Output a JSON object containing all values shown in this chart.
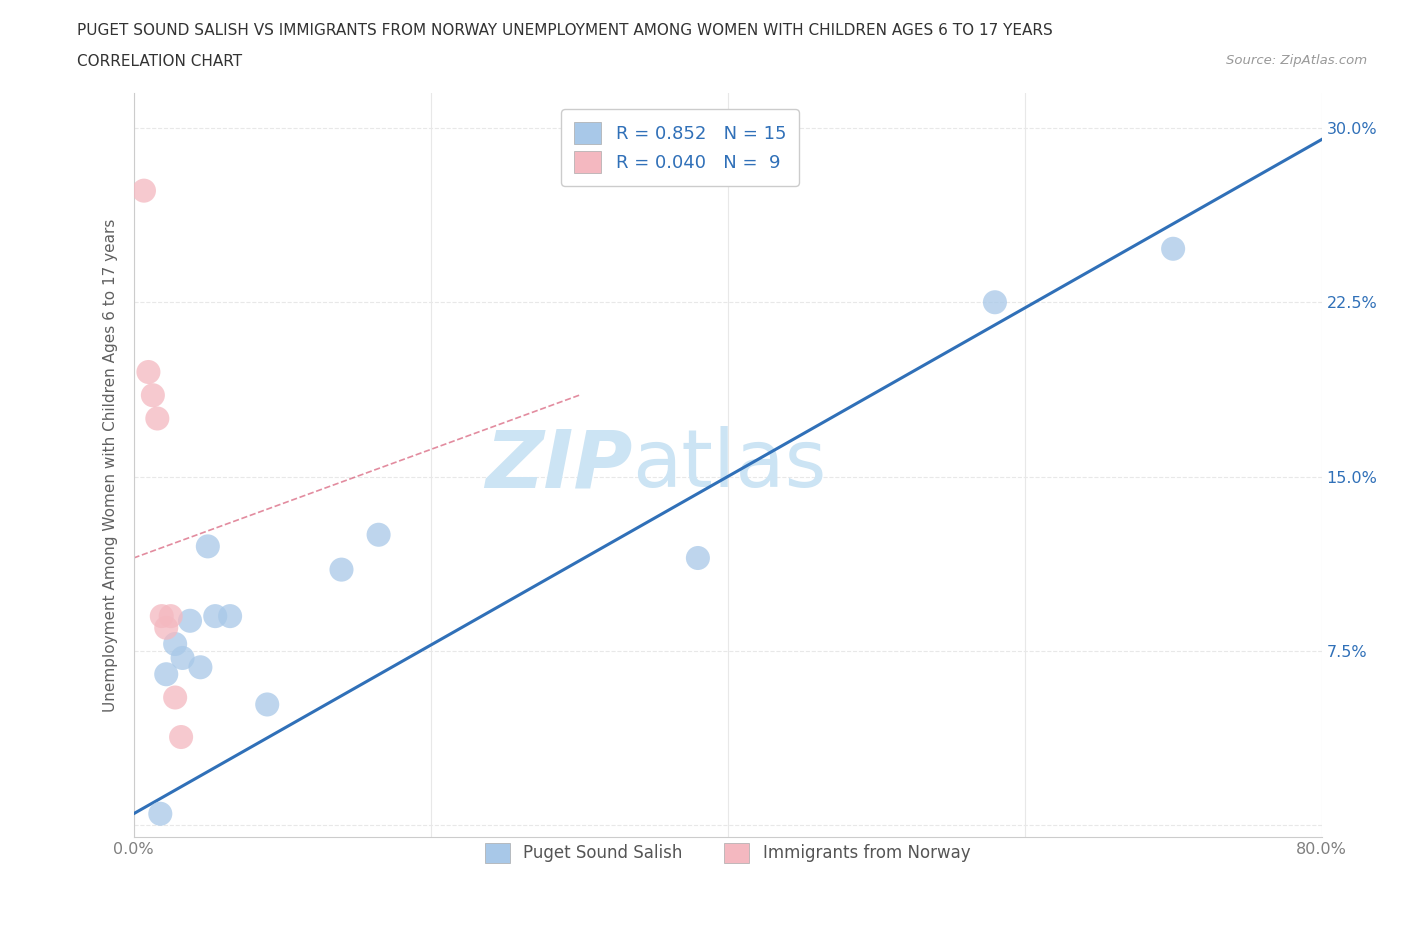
{
  "title_line1": "PUGET SOUND SALISH VS IMMIGRANTS FROM NORWAY UNEMPLOYMENT AMONG WOMEN WITH CHILDREN AGES 6 TO 17 YEARS",
  "title_line2": "CORRELATION CHART",
  "source_text": "Source: ZipAtlas.com",
  "ylabel": "Unemployment Among Women with Children Ages 6 to 17 years",
  "xlim": [
    0.0,
    0.8
  ],
  "ylim": [
    -0.005,
    0.315
  ],
  "xticks": [
    0.0,
    0.2,
    0.4,
    0.6,
    0.8
  ],
  "yticks": [
    0.0,
    0.075,
    0.15,
    0.225,
    0.3
  ],
  "xticklabels": [
    "0.0%",
    "",
    "",
    "",
    "80.0%"
  ],
  "yticklabels_right": [
    "",
    "7.5%",
    "15.0%",
    "22.5%",
    "30.0%"
  ],
  "blue_scatter_x": [
    0.018,
    0.022,
    0.028,
    0.033,
    0.038,
    0.045,
    0.05,
    0.055,
    0.065,
    0.09,
    0.14,
    0.165,
    0.38,
    0.58,
    0.7
  ],
  "blue_scatter_y": [
    0.005,
    0.065,
    0.078,
    0.072,
    0.088,
    0.068,
    0.12,
    0.09,
    0.09,
    0.052,
    0.11,
    0.125,
    0.115,
    0.225,
    0.248
  ],
  "pink_scatter_x": [
    0.007,
    0.01,
    0.013,
    0.016,
    0.019,
    0.022,
    0.025,
    0.028,
    0.032
  ],
  "pink_scatter_y": [
    0.273,
    0.195,
    0.185,
    0.175,
    0.09,
    0.085,
    0.09,
    0.055,
    0.038
  ],
  "blue_line_x": [
    0.0,
    0.8
  ],
  "blue_line_y": [
    0.005,
    0.295
  ],
  "pink_line_x": [
    0.0,
    0.3
  ],
  "pink_line_y": [
    0.115,
    0.185
  ],
  "blue_R": "0.852",
  "blue_N": "15",
  "pink_R": "0.040",
  "pink_N": "9",
  "blue_scatter_color": "#a8c8e8",
  "pink_scatter_color": "#f4b8c0",
  "blue_line_color": "#3070b8",
  "pink_line_color": "#d04060",
  "watermark_text": "ZIPatlas",
  "watermark_color": "#cce4f4",
  "background_color": "#ffffff",
  "grid_color": "#e8e8e8",
  "legend_label_color": "#3070b8",
  "tick_label_color_right": "#3070b8",
  "tick_label_color_bottom": "#808080",
  "ylabel_color": "#606060"
}
